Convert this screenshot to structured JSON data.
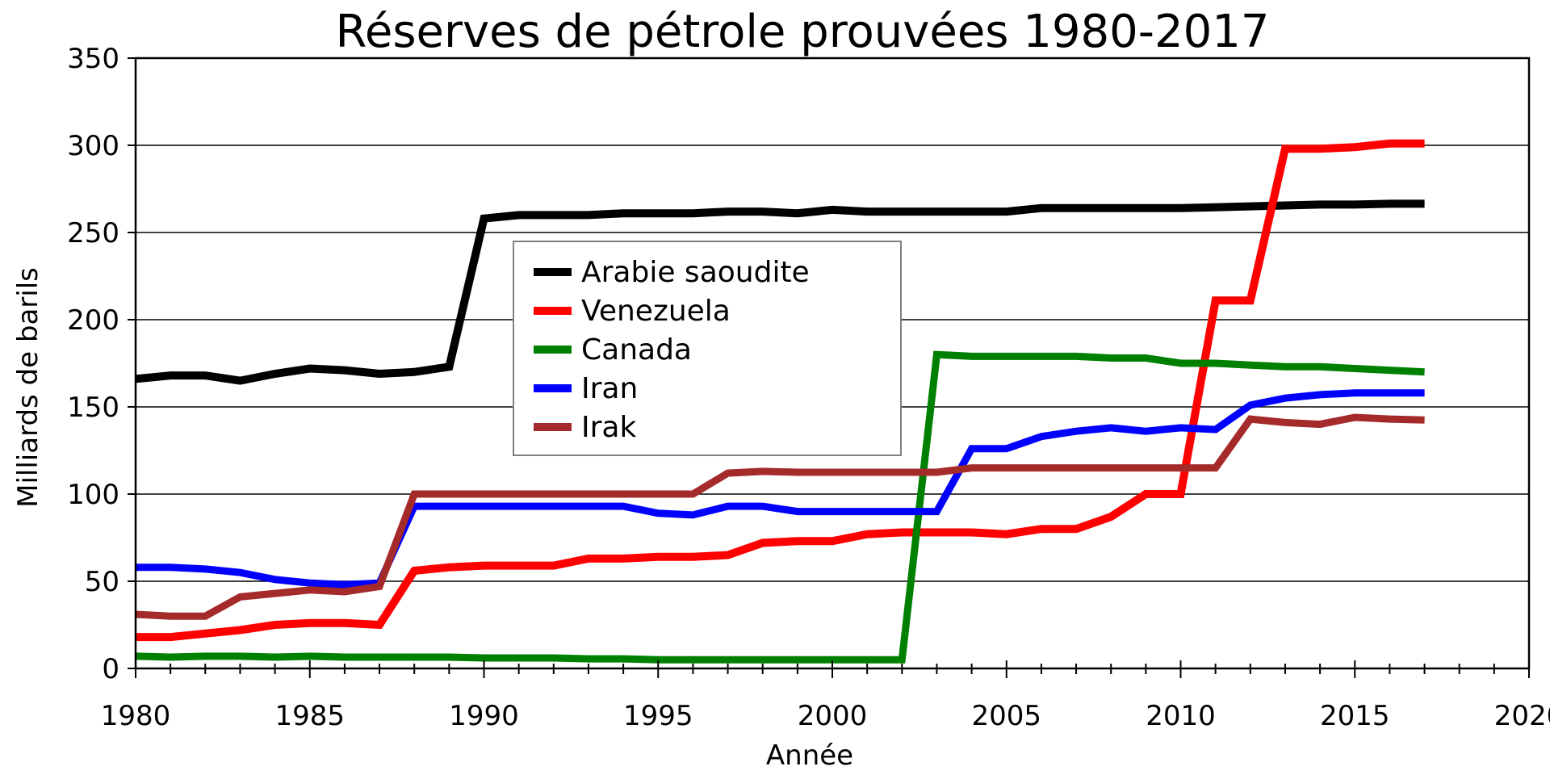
{
  "chart_data": {
    "type": "line",
    "title": "Réserves de pétrole prouvées 1980-2017",
    "xlabel": "Année",
    "ylabel": "Milliards de barils",
    "xlim": [
      1980,
      2020
    ],
    "ylim": [
      0,
      350
    ],
    "x_ticks": [
      1980,
      1985,
      1990,
      1995,
      2000,
      2005,
      2010,
      2015,
      2020
    ],
    "y_ticks": [
      0,
      50,
      100,
      150,
      200,
      250,
      300,
      350
    ],
    "grid": "horizontal",
    "legend_position": "upper-center",
    "x": [
      1980,
      1981,
      1982,
      1983,
      1984,
      1985,
      1986,
      1987,
      1988,
      1989,
      1990,
      1991,
      1992,
      1993,
      1994,
      1995,
      1996,
      1997,
      1998,
      1999,
      2000,
      2001,
      2002,
      2003,
      2004,
      2005,
      2006,
      2007,
      2008,
      2009,
      2010,
      2011,
      2012,
      2013,
      2014,
      2015,
      2016,
      2017
    ],
    "series": [
      {
        "name": "Arabie saoudite",
        "color": "#000000",
        "values": [
          166,
          168,
          168,
          165,
          169,
          172,
          171,
          169,
          170,
          173,
          258,
          260,
          260,
          260,
          261,
          261,
          261,
          262,
          262,
          261,
          263,
          262,
          262,
          262,
          262,
          262,
          264,
          264,
          264,
          264,
          264,
          264.5,
          265,
          265.5,
          266,
          266,
          266.5,
          266.5
        ]
      },
      {
        "name": "Venezuela",
        "color": "#ff0000",
        "values": [
          18,
          18,
          20,
          22,
          25,
          26,
          26,
          25,
          56,
          58,
          59,
          59,
          59,
          63,
          63,
          64,
          64,
          65,
          72,
          73,
          73,
          77,
          78,
          78,
          78,
          77,
          80,
          80,
          87,
          100,
          100,
          211,
          211,
          298,
          298,
          299,
          301,
          301
        ]
      },
      {
        "name": "Canada",
        "color": "#008000",
        "values": [
          7,
          6.5,
          7,
          7,
          6.5,
          7,
          6.5,
          6.5,
          6.5,
          6.5,
          6,
          6,
          6,
          5.5,
          5.5,
          5,
          5,
          5,
          5,
          5,
          5,
          5,
          5,
          180,
          179,
          179,
          179,
          179,
          178,
          178,
          175,
          175,
          174,
          173,
          173,
          172,
          171,
          170
        ]
      },
      {
        "name": "Iran",
        "color": "#0000ff",
        "values": [
          58,
          58,
          57,
          55,
          51,
          49,
          48,
          49,
          93,
          93,
          93,
          93,
          93,
          93,
          93,
          89,
          88,
          93,
          93,
          90,
          90,
          90,
          90,
          90,
          126,
          126,
          133,
          136,
          138,
          136,
          138,
          137,
          151,
          155,
          157,
          158,
          158,
          158
        ]
      },
      {
        "name": "Irak",
        "color": "#a52a2a",
        "values": [
          31,
          30,
          30,
          41,
          43,
          45,
          44,
          47,
          100,
          100,
          100,
          100,
          100,
          100,
          100,
          100,
          100,
          112,
          113,
          112.5,
          112.5,
          112.5,
          112.5,
          112.5,
          115,
          115,
          115,
          115,
          115,
          115,
          115,
          115,
          143,
          141,
          140,
          144,
          143,
          142.5
        ]
      }
    ]
  }
}
